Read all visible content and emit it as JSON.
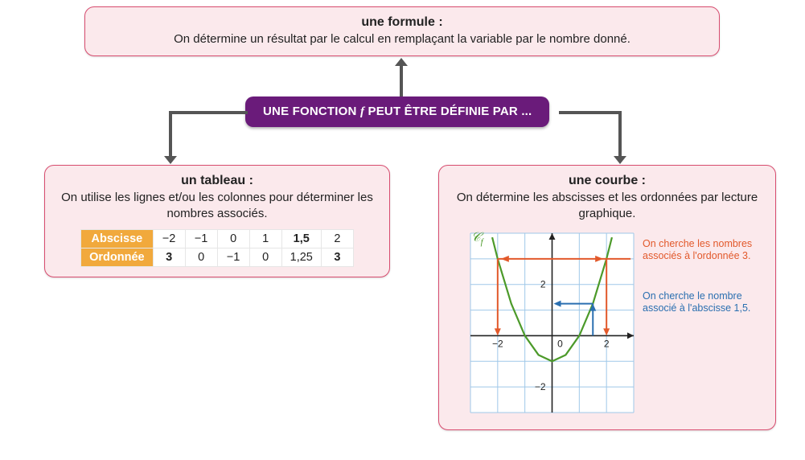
{
  "hub": {
    "text_before": "UNE FONCTION ",
    "text_var": "f",
    "text_after": " PEUT ÊTRE DÉFINIE PAR ...",
    "bg": "#6a1b7a",
    "fg": "#ffffff"
  },
  "box_formula": {
    "title": "une formule :",
    "body": "On détermine un résultat par le calcul en remplaçant la variable par le nombre donné."
  },
  "box_table": {
    "title": "un tableau :",
    "body": "On utilise les lignes et/ou les colonnes pour déterminer les nombres associés.",
    "row_headers": [
      "Abscisse",
      "Ordonnée"
    ],
    "abscisse": [
      "−2",
      "−1",
      "0",
      "1",
      "1,5",
      "2"
    ],
    "ordonnee": [
      "3",
      "0",
      "−1",
      "0",
      "1,25",
      "3"
    ],
    "highlight_blue_col": 4,
    "highlight_orange_cols": [
      0,
      5
    ],
    "header_bg": "#f1a93c"
  },
  "box_curve": {
    "title": "une courbe :",
    "body": "On détermine les abscisses et les ordonnées par lecture graphique.",
    "curve_label": "𝒞",
    "curve_label_sub": "f",
    "ann_orange": "On cherche les nombres associés à l'ordonnée 3.",
    "ann_blue": "On cherche le nombre associé à l'abscisse 1,5.",
    "chart": {
      "type": "parabola",
      "xlim": [
        -3,
        3
      ],
      "ylim": [
        -3,
        4
      ],
      "xticks": [
        -2,
        0,
        2
      ],
      "yticks": [
        -2,
        0,
        2
      ],
      "grid_color": "#9fc8e8",
      "axis_color": "#222222",
      "curve_color": "#4c9a2a",
      "curve_points_x": [
        -2.2,
        -2,
        -1.5,
        -1,
        -0.5,
        0,
        0.5,
        1,
        1.5,
        2,
        2.2
      ],
      "curve_points_y": [
        3.84,
        3,
        1.25,
        0,
        -0.75,
        -1,
        -0.75,
        0,
        1.25,
        3,
        3.84
      ],
      "orange_y": 3,
      "orange_x_left": -2,
      "orange_x_right": 2,
      "blue_x": 1.5,
      "blue_y": 1.25,
      "orange_color": "#e2592b",
      "blue_color": "#2a6fb0"
    }
  },
  "style": {
    "box_bg": "#fbe9ec",
    "box_border": "#d84c6f",
    "connector_color": "#555555"
  }
}
